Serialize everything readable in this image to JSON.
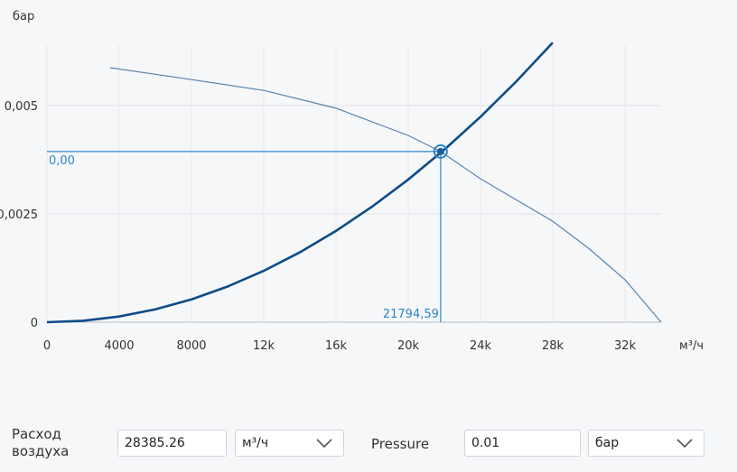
{
  "chart_data": {
    "type": "line",
    "ylabel": "бар",
    "xlabel": "м³/ч",
    "xlim": [
      0,
      34000
    ],
    "ylim": [
      0,
      0.0065
    ],
    "xticks": [
      0,
      4000,
      8000,
      {
        "value": 12000,
        "label": "12k"
      },
      {
        "value": 16000,
        "label": "16k"
      },
      {
        "value": 20000,
        "label": "20k"
      },
      {
        "value": 24000,
        "label": "24k"
      },
      {
        "value": 28000,
        "label": "28k"
      },
      {
        "value": 32000,
        "label": "32k"
      }
    ],
    "yticks": [
      0,
      {
        "value": 0.0025,
        "label": "0,0025"
      },
      {
        "value": 0.005,
        "label": "0,005"
      }
    ],
    "grid": true,
    "series": [
      {
        "color": "#0e4b87",
        "x": [
          0,
          2000,
          4000,
          6000,
          8000,
          10000,
          12000,
          14000,
          16000,
          18000,
          20000,
          22000,
          24000,
          26000,
          28000
        ],
        "values": [
          0,
          3.3e-05,
          0.000132,
          0.000296,
          0.000527,
          0.000823,
          0.001185,
          0.001613,
          0.002107,
          0.002667,
          0.003293,
          0.003984,
          0.004741,
          0.005565,
          0.006453
        ]
      },
      {
        "color": "#5a84ab",
        "x": [
          3500,
          8000,
          12000,
          16000,
          20000,
          21794.59,
          24000,
          28000,
          30000,
          32000,
          34000
        ],
        "values": [
          0.005875,
          0.0056,
          0.00535,
          0.00494,
          0.00431,
          0.00394,
          0.00331,
          0.00233,
          0.0017,
          0.00098,
          0
        ]
      }
    ],
    "point": {
      "x": 21794.59,
      "y": 0.00394,
      "x_label": "21794,59",
      "y_label": "0,00",
      "color": "#2a86c6"
    }
  },
  "form": {
    "flow_label": "Расход воздуха",
    "flow_value": "28385.26",
    "flow_unit": "м³/ч",
    "pressure_label": "Pressure",
    "pressure_value": "0.01",
    "pressure_unit": "бар"
  }
}
